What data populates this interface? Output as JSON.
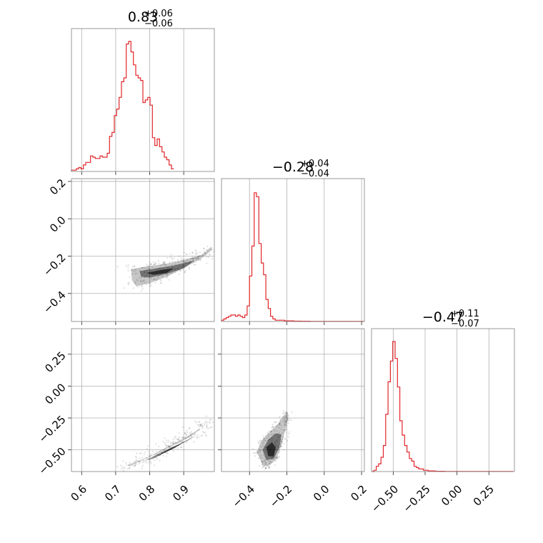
{
  "chart_data": {
    "type": "corner",
    "color": "#e2262a",
    "parameters": [
      {
        "title_value": "0.83",
        "plus": "+0.06",
        "minus": "−0.06"
      },
      {
        "title_value": "−0.28",
        "plus": "+0.04",
        "minus": "−0.04"
      },
      {
        "title_value": "−0.47",
        "plus": "+0.11",
        "minus": "−0.07"
      }
    ],
    "ranges": [
      [
        0.57,
        0.99
      ],
      [
        -0.55,
        0.215
      ],
      [
        -0.67,
        0.45
      ]
    ],
    "x_ticks": [
      {
        "values": [
          0.6,
          0.7,
          0.8,
          0.9
        ],
        "labels": [
          "0.6",
          "0.7",
          "0.8",
          "0.9"
        ]
      },
      {
        "values": [
          -0.4,
          -0.2,
          0.0,
          0.2
        ],
        "labels": [
          "−0.4",
          "−0.2",
          "0.0",
          "0.2"
        ]
      },
      {
        "values": [
          -0.5,
          -0.25,
          0.0,
          0.25
        ],
        "labels": [
          "−0.50",
          "−0.25",
          "0.00",
          "0.25"
        ]
      }
    ],
    "y_ticks": [
      null,
      {
        "values": [
          0.2,
          0.0,
          -0.2,
          -0.4
        ],
        "labels": [
          "0.2",
          "0.0",
          "−0.2",
          "−0.4"
        ]
      },
      {
        "values": [
          0.25,
          0.0,
          -0.25,
          -0.5
        ],
        "labels": [
          "0.25",
          "0.00",
          "−0.25",
          "−0.50"
        ]
      }
    ],
    "histograms": [
      {
        "param": 0,
        "bin_start": 0.57,
        "bin_width": 0.007,
        "max_count": 1.0,
        "counts": [
          0.01,
          0.01,
          0.02,
          0.03,
          0.02,
          0.05,
          0.07,
          0.07,
          0.12,
          0.11,
          0.1,
          0.1,
          0.12,
          0.11,
          0.11,
          0.14,
          0.27,
          0.3,
          0.43,
          0.48,
          0.57,
          0.69,
          0.72,
          0.98,
          1.0,
          0.92,
          0.82,
          0.74,
          0.72,
          0.7,
          0.53,
          0.55,
          0.57,
          0.51,
          0.26,
          0.2,
          0.25,
          0.19,
          0.15,
          0.11,
          0.09,
          0.05,
          0.02
        ]
      },
      {
        "param": 1,
        "bin_start": -0.55,
        "bin_width": 0.0125,
        "max_count": 1.0,
        "counts": [
          0.01,
          0.02,
          0.03,
          0.04,
          0.05,
          0.05,
          0.04,
          0.05,
          0.04,
          0.03,
          0.05,
          0.12,
          0.35,
          0.58,
          0.99,
          0.96,
          0.6,
          0.45,
          0.36,
          0.17,
          0.1,
          0.04,
          0.02,
          0.01,
          0.01,
          0.01,
          0.01,
          0.005,
          0.005,
          0.005,
          0.005,
          0.003,
          0.003,
          0.003,
          0.002,
          0.002,
          0.002,
          0.002,
          0.001,
          0.001,
          0.001,
          0.001,
          0.001,
          0.001,
          0.001,
          0.001,
          0.001,
          0.001,
          0.001,
          0.001,
          0.001,
          0.001,
          0.001,
          0.001,
          0.001,
          0.001,
          0.001,
          0.001,
          0.001,
          0.001,
          0.001
        ]
      },
      {
        "param": 2,
        "bin_start": -0.67,
        "bin_width": 0.0185,
        "max_count": 1.0,
        "counts": [
          0.0,
          0.01,
          0.04,
          0.06,
          0.11,
          0.2,
          0.44,
          0.69,
          0.85,
          1.0,
          0.87,
          0.65,
          0.39,
          0.28,
          0.2,
          0.15,
          0.1,
          0.08,
          0.04,
          0.03,
          0.02,
          0.02,
          0.01,
          0.01,
          0.005,
          0.005,
          0.005,
          0.002,
          0.002,
          0.002,
          0.002,
          0.001,
          0.001,
          0.001,
          0.001,
          0.001,
          0.001,
          0.001,
          0.001,
          0.001,
          0.001,
          0.001,
          0.001,
          0.001,
          0.001,
          0.001,
          0.001,
          0.001,
          0.001,
          0.001,
          0.001,
          0.001,
          0.001,
          0.001,
          0.001,
          0.001,
          0.001,
          0.001,
          0.001,
          0.001
        ]
      }
    ],
    "contours": [
      {
        "x_param": 0,
        "y_param": 1,
        "levels": [
          [
            [
              0.745,
              -0.27
            ],
            [
              0.79,
              -0.255
            ],
            [
              0.85,
              -0.24
            ],
            [
              0.9,
              -0.22
            ],
            [
              0.95,
              -0.195
            ],
            [
              0.98,
              -0.155
            ],
            [
              0.985,
              -0.165
            ],
            [
              0.95,
              -0.215
            ],
            [
              0.9,
              -0.265
            ],
            [
              0.85,
              -0.31
            ],
            [
              0.8,
              -0.345
            ],
            [
              0.76,
              -0.36
            ],
            [
              0.748,
              -0.33
            ]
          ],
          [
            [
              0.77,
              -0.28
            ],
            [
              0.82,
              -0.265
            ],
            [
              0.87,
              -0.25
            ],
            [
              0.93,
              -0.225
            ],
            [
              0.9,
              -0.265
            ],
            [
              0.85,
              -0.295
            ],
            [
              0.8,
              -0.315
            ],
            [
              0.775,
              -0.31
            ]
          ],
          [
            [
              0.79,
              -0.29
            ],
            [
              0.83,
              -0.275
            ],
            [
              0.87,
              -0.265
            ],
            [
              0.85,
              -0.29
            ],
            [
              0.81,
              -0.3
            ]
          ]
        ],
        "scatter_blob": {
          "cx": [
            0.8,
            -0.3
          ],
          "spread": [
            0.09,
            0.06
          ],
          "n": 260
        }
      },
      {
        "x_param": 0,
        "y_param": 2,
        "levels": [
          [
            [
              0.735,
              -0.62
            ],
            [
              0.8,
              -0.55
            ],
            [
              0.85,
              -0.48
            ],
            [
              0.9,
              -0.41
            ],
            [
              0.95,
              -0.33
            ],
            [
              0.975,
              -0.27
            ],
            [
              0.97,
              -0.28
            ],
            [
              0.93,
              -0.38
            ],
            [
              0.88,
              -0.45
            ],
            [
              0.82,
              -0.53
            ],
            [
              0.77,
              -0.59
            ],
            [
              0.74,
              -0.63
            ]
          ],
          [
            [
              0.79,
              -0.58
            ],
            [
              0.84,
              -0.51
            ],
            [
              0.89,
              -0.45
            ],
            [
              0.94,
              -0.38
            ],
            [
              0.91,
              -0.43
            ],
            [
              0.86,
              -0.5
            ],
            [
              0.81,
              -0.57
            ]
          ],
          [
            [
              0.82,
              -0.55
            ],
            [
              0.86,
              -0.49
            ],
            [
              0.9,
              -0.44
            ],
            [
              0.87,
              -0.49
            ],
            [
              0.83,
              -0.54
            ]
          ]
        ],
        "scatter_blob": {
          "cx": [
            0.82,
            -0.5
          ],
          "spread": [
            0.1,
            0.1
          ],
          "n": 240
        }
      },
      {
        "x_param": 1,
        "y_param": 2,
        "levels": [
          [
            [
              -0.33,
              -0.62
            ],
            [
              -0.36,
              -0.52
            ],
            [
              -0.34,
              -0.44
            ],
            [
              -0.3,
              -0.37
            ],
            [
              -0.25,
              -0.3
            ],
            [
              -0.2,
              -0.2
            ],
            [
              -0.19,
              -0.23
            ],
            [
              -0.21,
              -0.35
            ],
            [
              -0.23,
              -0.47
            ],
            [
              -0.26,
              -0.58
            ],
            [
              -0.3,
              -0.63
            ]
          ],
          [
            [
              -0.31,
              -0.58
            ],
            [
              -0.33,
              -0.5
            ],
            [
              -0.3,
              -0.42
            ],
            [
              -0.26,
              -0.37
            ],
            [
              -0.23,
              -0.38
            ],
            [
              -0.24,
              -0.48
            ],
            [
              -0.27,
              -0.57
            ]
          ],
          [
            [
              -0.3,
              -0.55
            ],
            [
              -0.31,
              -0.48
            ],
            [
              -0.28,
              -0.44
            ],
            [
              -0.26,
              -0.48
            ],
            [
              -0.27,
              -0.55
            ]
          ]
        ],
        "scatter_blob": {
          "cx": [
            -0.3,
            -0.48
          ],
          "spread": [
            0.06,
            0.1
          ],
          "n": 240
        }
      }
    ]
  }
}
